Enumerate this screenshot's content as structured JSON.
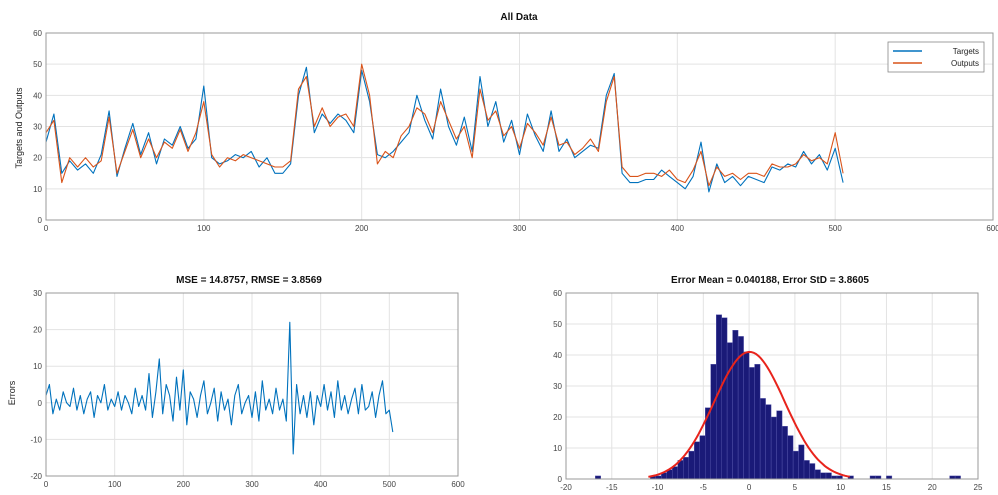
{
  "chart_data": [
    {
      "type": "line",
      "title": "All Data",
      "xlabel": "",
      "ylabel": "Targets and Outputs",
      "xlim": [
        0,
        600
      ],
      "ylim": [
        0,
        60
      ],
      "xticks": [
        0,
        100,
        200,
        300,
        400,
        500,
        600
      ],
      "yticks": [
        0,
        10,
        20,
        30,
        40,
        50,
        60
      ],
      "grid": true,
      "legend_position": "top-right",
      "series": [
        {
          "name": "Targets",
          "color": "#0072BD",
          "x": [
            0,
            5,
            10,
            15,
            20,
            25,
            30,
            35,
            40,
            45,
            50,
            55,
            60,
            65,
            70,
            75,
            80,
            85,
            90,
            95,
            100,
            105,
            110,
            115,
            120,
            125,
            130,
            135,
            140,
            145,
            150,
            155,
            160,
            165,
            170,
            175,
            180,
            185,
            190,
            195,
            200,
            205,
            210,
            215,
            220,
            225,
            230,
            235,
            240,
            245,
            250,
            255,
            260,
            265,
            270,
            275,
            280,
            285,
            290,
            295,
            300,
            305,
            310,
            315,
            320,
            325,
            330,
            335,
            340,
            345,
            350,
            355,
            360,
            365,
            370,
            375,
            380,
            385,
            390,
            395,
            400,
            405,
            410,
            415,
            420,
            425,
            430,
            435,
            440,
            445,
            450,
            455,
            460,
            465,
            470,
            475,
            480,
            485,
            490,
            495,
            500,
            505
          ],
          "y": [
            25,
            34,
            15,
            19,
            16,
            18,
            15,
            21,
            35,
            14,
            23,
            31,
            21,
            28,
            18,
            26,
            24,
            30,
            23,
            26,
            43,
            20,
            18,
            19,
            21,
            20,
            22,
            17,
            20,
            15,
            15,
            18,
            40,
            49,
            28,
            34,
            31,
            34,
            32,
            28,
            48,
            38,
            21,
            20,
            22,
            25,
            28,
            40,
            32,
            26,
            42,
            30,
            24,
            33,
            22,
            46,
            30,
            38,
            25,
            32,
            21,
            34,
            27,
            22,
            35,
            22,
            26,
            20,
            22,
            24,
            23,
            40,
            47,
            15,
            12,
            12,
            13,
            13,
            16,
            14,
            12,
            10,
            14,
            25,
            9,
            18,
            12,
            14,
            11,
            14,
            13,
            12,
            17,
            16,
            18,
            17,
            22,
            18,
            21,
            16,
            23,
            12
          ]
        },
        {
          "name": "Outputs",
          "color": "#D95319",
          "x": [
            0,
            5,
            10,
            15,
            20,
            25,
            30,
            35,
            40,
            45,
            50,
            55,
            60,
            65,
            70,
            75,
            80,
            85,
            90,
            95,
            100,
            105,
            110,
            115,
            120,
            125,
            130,
            135,
            140,
            145,
            150,
            155,
            160,
            165,
            170,
            175,
            180,
            185,
            190,
            195,
            200,
            205,
            210,
            215,
            220,
            225,
            230,
            235,
            240,
            245,
            250,
            255,
            260,
            265,
            270,
            275,
            280,
            285,
            290,
            295,
            300,
            305,
            310,
            315,
            320,
            325,
            330,
            335,
            340,
            345,
            350,
            355,
            360,
            365,
            370,
            375,
            380,
            385,
            390,
            395,
            400,
            405,
            410,
            415,
            420,
            425,
            430,
            435,
            440,
            445,
            450,
            455,
            460,
            465,
            470,
            475,
            480,
            485,
            490,
            495,
            500,
            505
          ],
          "y": [
            28,
            32,
            12,
            20,
            17,
            20,
            17,
            19,
            33,
            15,
            22,
            29,
            20,
            26,
            20,
            25,
            23,
            29,
            22,
            28,
            38,
            21,
            17,
            20,
            19,
            21,
            20,
            19,
            18,
            17,
            17,
            19,
            42,
            46,
            30,
            36,
            30,
            33,
            34,
            30,
            50,
            40,
            18,
            22,
            20,
            27,
            30,
            36,
            34,
            28,
            38,
            32,
            26,
            30,
            20,
            42,
            32,
            35,
            27,
            30,
            23,
            31,
            28,
            24,
            33,
            24,
            25,
            21,
            23,
            26,
            22,
            38,
            46,
            17,
            14,
            14,
            15,
            15,
            14,
            16,
            13,
            12,
            16,
            22,
            11,
            17,
            14,
            15,
            13,
            15,
            15,
            14,
            18,
            17,
            17,
            18,
            21,
            19,
            20,
            18,
            28,
            15
          ]
        }
      ]
    },
    {
      "type": "line",
      "title": "MSE = 14.8757, RMSE = 3.8569",
      "xlabel": "",
      "ylabel": "Errors",
      "xlim": [
        0,
        600
      ],
      "ylim": [
        -20,
        30
      ],
      "xticks": [
        0,
        100,
        200,
        300,
        400,
        500,
        600
      ],
      "yticks": [
        -20,
        -10,
        0,
        10,
        20,
        30
      ],
      "grid": true,
      "series": [
        {
          "color": "#0072BD",
          "x": [
            0,
            5,
            10,
            15,
            20,
            25,
            30,
            35,
            40,
            45,
            50,
            55,
            60,
            65,
            70,
            75,
            80,
            85,
            90,
            95,
            100,
            105,
            110,
            115,
            120,
            125,
            130,
            135,
            140,
            145,
            150,
            155,
            160,
            165,
            170,
            175,
            180,
            185,
            190,
            195,
            200,
            205,
            210,
            215,
            220,
            225,
            230,
            235,
            240,
            245,
            250,
            255,
            260,
            265,
            270,
            275,
            280,
            285,
            290,
            295,
            300,
            305,
            310,
            315,
            320,
            325,
            330,
            335,
            340,
            345,
            350,
            355,
            360,
            365,
            370,
            375,
            380,
            385,
            390,
            395,
            400,
            405,
            410,
            415,
            420,
            425,
            430,
            435,
            440,
            445,
            450,
            455,
            460,
            465,
            470,
            475,
            480,
            485,
            490,
            495,
            500,
            505
          ],
          "y": [
            2,
            5,
            -3,
            1,
            -2,
            3,
            0,
            -1,
            4,
            -2,
            2,
            -3,
            1,
            3,
            -4,
            2,
            0,
            5,
            -2,
            1,
            -1,
            3,
            -2,
            2,
            0,
            -3,
            4,
            -1,
            2,
            -2,
            8,
            -4,
            3,
            12,
            -3,
            5,
            2,
            -5,
            7,
            -2,
            9,
            -6,
            3,
            1,
            -4,
            2,
            6,
            -3,
            0,
            4,
            -5,
            3,
            -2,
            1,
            -6,
            2,
            5,
            -3,
            0,
            2,
            -4,
            3,
            -5,
            6,
            -2,
            1,
            -3,
            4,
            -2,
            1,
            -5,
            22,
            -14,
            5,
            -3,
            2,
            -4,
            3,
            -6,
            2,
            -1,
            5,
            -2,
            3,
            -4,
            6,
            -2,
            2,
            -3,
            1,
            4,
            -3,
            5,
            -2,
            -1,
            3,
            -4,
            2,
            6,
            -3,
            -2,
            -8
          ]
        }
      ]
    },
    {
      "type": "bar",
      "title": "Error Mean = 0.040188, Error StD = 3.8605",
      "xlabel": "",
      "ylabel": "",
      "xlim": [
        -20,
        25
      ],
      "ylim": [
        0,
        60
      ],
      "xticks": [
        -20,
        -15,
        -10,
        -5,
        0,
        5,
        10,
        15,
        20,
        25
      ],
      "yticks": [
        0,
        10,
        20,
        30,
        40,
        50,
        60
      ],
      "grid": true,
      "bar_width": 0.6,
      "bar_color": "#1a1a78",
      "fit_color": "#e8241c",
      "x": [
        -16.5,
        -10.5,
        -9.9,
        -9.3,
        -8.7,
        -8.1,
        -7.5,
        -6.9,
        -6.3,
        -5.7,
        -5.1,
        -4.5,
        -3.9,
        -3.3,
        -2.7,
        -2.1,
        -1.5,
        -0.9,
        -0.3,
        0.3,
        0.9,
        1.5,
        2.1,
        2.7,
        3.3,
        3.9,
        4.5,
        5.1,
        5.7,
        6.3,
        6.9,
        7.5,
        8.1,
        8.7,
        9.3,
        9.9,
        11.1,
        13.5,
        14.1,
        15.3,
        22.2,
        22.8
      ],
      "values": [
        1,
        1,
        1,
        2,
        3,
        4,
        6,
        7,
        9,
        12,
        14,
        23,
        37,
        53,
        52,
        44,
        48,
        46,
        41,
        36,
        37,
        26,
        24,
        20,
        22,
        17,
        14,
        9,
        11,
        6,
        5,
        3,
        2,
        2,
        1,
        1,
        1,
        1,
        1,
        1,
        1,
        1
      ],
      "fit": {
        "mean": 0.040188,
        "std": 3.8605,
        "peak": 41
      }
    }
  ]
}
